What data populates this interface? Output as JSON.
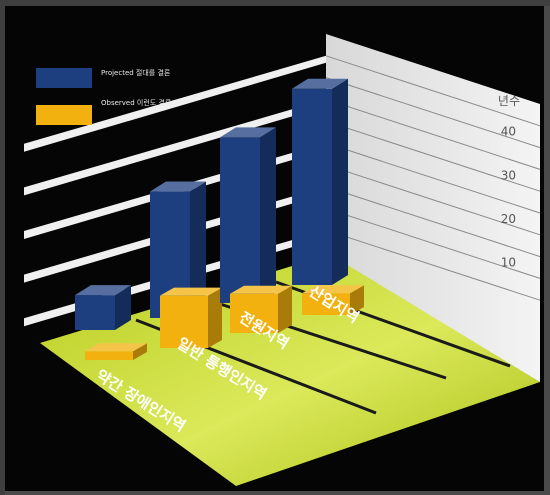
{
  "chart_data": {
    "type": "bar",
    "title": "",
    "unit_label": "년수",
    "categories": [
      "약간 장애인지역",
      "일반 통행인지역",
      "전원지역",
      "산업지역"
    ],
    "series": [
      {
        "name": "Projected 절대를 결론",
        "color": "#1d3f80",
        "values": [
          8,
          29,
          38,
          45
        ]
      },
      {
        "name": "Observed 이런도 결론",
        "color": "#f2b10e",
        "values": [
          2,
          12,
          9,
          5
        ]
      }
    ],
    "yticks": [
      10,
      20,
      30,
      40
    ],
    "ylim": [
      0,
      50
    ],
    "grid": true,
    "legend_position": "top-left",
    "floor_color": "#c8dd2a"
  }
}
